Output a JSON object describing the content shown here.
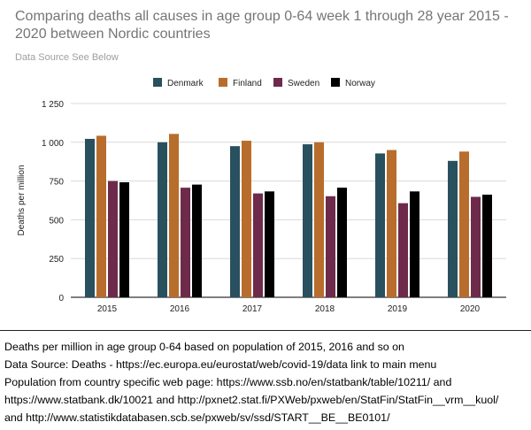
{
  "chart_data": {
    "type": "bar",
    "title": "Comparing deaths all causes in age group 0-64 week 1 through 28 year 2015 - 2020 between Nordic countries",
    "subtitle": "Data Source See Below",
    "ylabel": "Deaths per million",
    "xlabel": "",
    "categories": [
      "2015",
      "2016",
      "2017",
      "2018",
      "2019",
      "2020"
    ],
    "yticks": [
      "0",
      "250",
      "500",
      "750",
      "1 000",
      "1 250"
    ],
    "ylim": [
      0,
      1250
    ],
    "grid": true,
    "legend_position": "top",
    "series": [
      {
        "name": "Denmark",
        "color": "#29505e",
        "values": [
          1022,
          1000,
          975,
          987,
          928,
          880
        ]
      },
      {
        "name": "Finland",
        "color": "#b86d2c",
        "values": [
          1042,
          1054,
          1010,
          1000,
          950,
          940
        ]
      },
      {
        "name": "Sweden",
        "color": "#6e2a4a",
        "values": [
          750,
          707,
          670,
          652,
          607,
          648
        ]
      },
      {
        "name": "Norway",
        "color": "#000000",
        "values": [
          742,
          727,
          683,
          707,
          683,
          662
        ]
      }
    ]
  },
  "notes": [
    "Deaths per million in age group 0-64 based on population of 2015, 2016 and so on",
    "Data Source: Deaths - https://ec.europa.eu/eurostat/web/covid-19/data link to main menu",
    "Population from country specific web page: https://www.ssb.no/en/statbank/table/10211/ and",
    "https://www.statbank.dk/10021 and http://pxnet2.stat.fi/PXWeb/pxweb/en/StatFin/StatFin__vrm__kuol/",
    "and http://www.statistikdatabasen.scb.se/pxweb/sv/ssd/START__BE__BE0101/"
  ]
}
